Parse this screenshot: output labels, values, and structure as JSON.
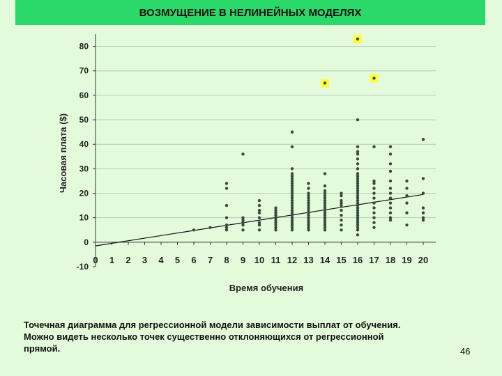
{
  "slide": {
    "title": "ВОЗМУЩЕНИЕ В НЕЛИНЕЙНЫХ МОДЕЛЯХ",
    "caption_lines": [
      "Точечная диаграмма для регрессионной модели зависимости выплат от обучения.",
      "Можно видеть несколько точек существенно отклоняющихся от регрессионной",
      "прямой."
    ],
    "page_number": "46",
    "colors": {
      "background": "#e3fbdb",
      "title_bar": "#2bd96b",
      "points": "#3a4a3a",
      "highlight": "#ffff33"
    }
  },
  "chart_data": {
    "type": "scatter",
    "xlabel": "Время обучения",
    "ylabel": "Часовая плата ($)",
    "xlim": [
      0,
      20
    ],
    "ylim": [
      -10,
      85
    ],
    "xticks": [
      0,
      1,
      2,
      3,
      4,
      5,
      6,
      7,
      8,
      9,
      10,
      11,
      12,
      13,
      14,
      15,
      16,
      17,
      18,
      19,
      20
    ],
    "yticks": [
      -10,
      0,
      10,
      20,
      30,
      40,
      50,
      60,
      70,
      80
    ],
    "grid": "horizontal",
    "regression_line": {
      "x": [
        0,
        20
      ],
      "y": [
        -1.5,
        19.5
      ]
    },
    "points": [
      [
        6,
        5
      ],
      [
        7,
        6
      ],
      [
        8,
        5
      ],
      [
        8,
        6
      ],
      [
        8,
        7
      ],
      [
        8,
        10
      ],
      [
        8,
        15
      ],
      [
        8,
        22
      ],
      [
        8,
        24
      ],
      [
        9,
        5
      ],
      [
        9,
        7
      ],
      [
        9,
        8
      ],
      [
        9,
        9
      ],
      [
        9,
        10
      ],
      [
        9,
        36
      ],
      [
        10,
        5
      ],
      [
        10,
        7
      ],
      [
        10,
        8
      ],
      [
        10,
        10
      ],
      [
        10,
        12
      ],
      [
        10,
        13
      ],
      [
        10,
        15
      ],
      [
        10,
        17
      ],
      [
        11,
        5
      ],
      [
        11,
        6
      ],
      [
        11,
        7
      ],
      [
        11,
        8
      ],
      [
        11,
        9
      ],
      [
        11,
        10
      ],
      [
        11,
        11
      ],
      [
        11,
        12
      ],
      [
        11,
        13
      ],
      [
        11,
        14
      ],
      [
        12,
        5
      ],
      [
        12,
        6
      ],
      [
        12,
        7
      ],
      [
        12,
        8
      ],
      [
        12,
        9
      ],
      [
        12,
        10
      ],
      [
        12,
        11
      ],
      [
        12,
        12
      ],
      [
        12,
        13
      ],
      [
        12,
        14
      ],
      [
        12,
        15
      ],
      [
        12,
        16
      ],
      [
        12,
        17
      ],
      [
        12,
        18
      ],
      [
        12,
        19
      ],
      [
        12,
        20
      ],
      [
        12,
        21
      ],
      [
        12,
        22
      ],
      [
        12,
        23
      ],
      [
        12,
        24
      ],
      [
        12,
        25
      ],
      [
        12,
        26
      ],
      [
        12,
        27
      ],
      [
        12,
        28
      ],
      [
        12,
        30
      ],
      [
        12,
        39
      ],
      [
        12,
        45
      ],
      [
        13,
        5
      ],
      [
        13,
        6
      ],
      [
        13,
        7
      ],
      [
        13,
        8
      ],
      [
        13,
        9
      ],
      [
        13,
        10
      ],
      [
        13,
        11
      ],
      [
        13,
        12
      ],
      [
        13,
        13
      ],
      [
        13,
        14
      ],
      [
        13,
        15
      ],
      [
        13,
        16
      ],
      [
        13,
        17
      ],
      [
        13,
        18
      ],
      [
        13,
        19
      ],
      [
        13,
        20
      ],
      [
        13,
        22
      ],
      [
        13,
        24
      ],
      [
        14,
        5
      ],
      [
        14,
        6
      ],
      [
        14,
        7
      ],
      [
        14,
        8
      ],
      [
        14,
        9
      ],
      [
        14,
        10
      ],
      [
        14,
        11
      ],
      [
        14,
        12
      ],
      [
        14,
        13
      ],
      [
        14,
        14
      ],
      [
        14,
        15
      ],
      [
        14,
        16
      ],
      [
        14,
        17
      ],
      [
        14,
        18
      ],
      [
        14,
        19
      ],
      [
        14,
        20
      ],
      [
        14,
        21
      ],
      [
        14,
        23
      ],
      [
        14,
        28
      ],
      [
        15,
        5
      ],
      [
        15,
        7
      ],
      [
        15,
        9
      ],
      [
        15,
        11
      ],
      [
        15,
        13
      ],
      [
        15,
        15
      ],
      [
        15,
        16
      ],
      [
        15,
        17
      ],
      [
        15,
        19
      ],
      [
        15,
        20
      ],
      [
        16,
        3
      ],
      [
        16,
        5
      ],
      [
        16,
        6
      ],
      [
        16,
        7
      ],
      [
        16,
        8
      ],
      [
        16,
        9
      ],
      [
        16,
        10
      ],
      [
        16,
        11
      ],
      [
        16,
        12
      ],
      [
        16,
        13
      ],
      [
        16,
        14
      ],
      [
        16,
        15
      ],
      [
        16,
        16
      ],
      [
        16,
        17
      ],
      [
        16,
        18
      ],
      [
        16,
        19
      ],
      [
        16,
        20
      ],
      [
        16,
        21
      ],
      [
        16,
        22
      ],
      [
        16,
        23
      ],
      [
        16,
        24
      ],
      [
        16,
        25
      ],
      [
        16,
        26
      ],
      [
        16,
        27
      ],
      [
        16,
        28
      ],
      [
        16,
        30
      ],
      [
        16,
        32
      ],
      [
        16,
        34
      ],
      [
        16,
        36
      ],
      [
        16,
        37
      ],
      [
        16,
        39
      ],
      [
        16,
        50
      ],
      [
        17,
        6
      ],
      [
        17,
        8
      ],
      [
        17,
        10
      ],
      [
        17,
        12
      ],
      [
        17,
        14
      ],
      [
        17,
        16
      ],
      [
        17,
        18
      ],
      [
        17,
        20
      ],
      [
        17,
        22
      ],
      [
        17,
        24
      ],
      [
        17,
        25
      ],
      [
        17,
        39
      ],
      [
        18,
        9
      ],
      [
        18,
        10
      ],
      [
        18,
        12
      ],
      [
        18,
        14
      ],
      [
        18,
        16
      ],
      [
        18,
        18
      ],
      [
        18,
        20
      ],
      [
        18,
        22
      ],
      [
        18,
        25
      ],
      [
        18,
        29
      ],
      [
        18,
        32
      ],
      [
        18,
        36
      ],
      [
        18,
        39
      ],
      [
        19,
        7
      ],
      [
        19,
        12
      ],
      [
        19,
        16
      ],
      [
        19,
        19
      ],
      [
        19,
        22
      ],
      [
        19,
        25
      ],
      [
        20,
        9
      ],
      [
        20,
        10
      ],
      [
        20,
        12
      ],
      [
        20,
        14
      ],
      [
        20,
        20
      ],
      [
        20,
        26
      ],
      [
        20,
        42
      ]
    ],
    "outliers": [
      [
        14,
        65
      ],
      [
        16,
        83
      ],
      [
        17,
        67
      ]
    ]
  }
}
